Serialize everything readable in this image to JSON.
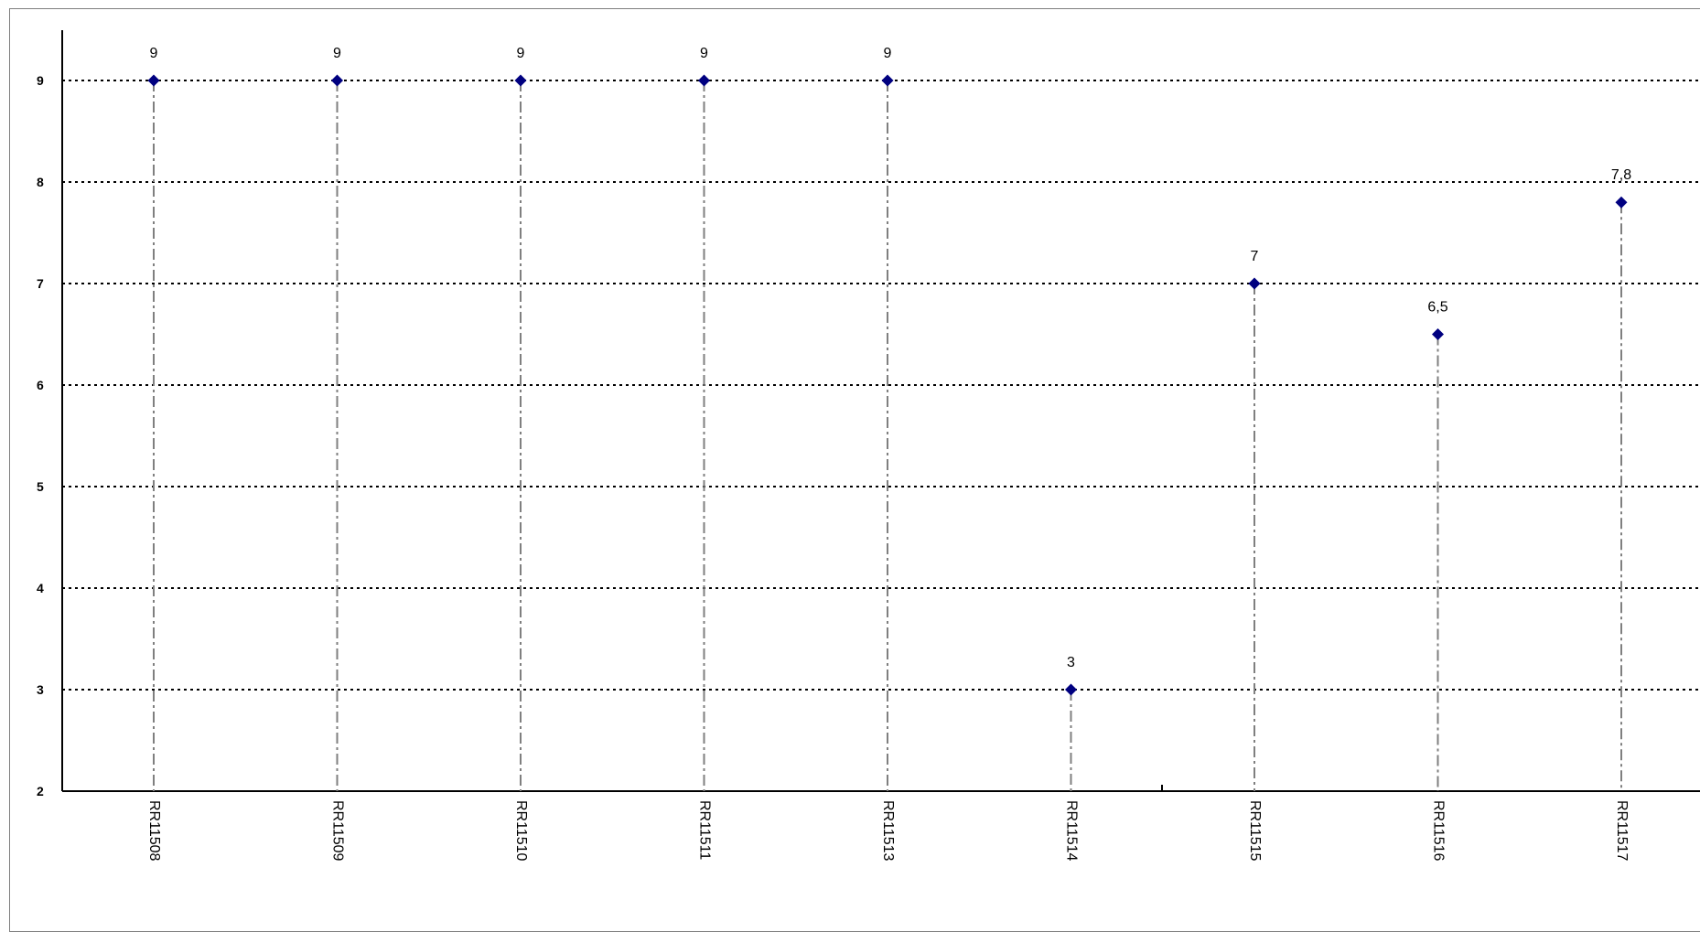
{
  "chart_data": {
    "type": "scatter",
    "categories": [
      "RR11508",
      "RR11509",
      "RR11510",
      "RR11511",
      "RR11513",
      "RR11514",
      "RR11515",
      "RR11516",
      "RR11517"
    ],
    "values": [
      9,
      9,
      9,
      9,
      9,
      3,
      7,
      6.5,
      7.8
    ],
    "data_labels": [
      "9",
      "9",
      "9",
      "9",
      "9",
      "3",
      "7",
      "6,5",
      "7,8"
    ],
    "y_ticks": [
      "2",
      "3",
      "4",
      "5",
      "6",
      "7",
      "8",
      "9"
    ],
    "ylim": [
      2,
      9.5
    ],
    "grid": true,
    "marker": "diamond",
    "marker_color": "#000080",
    "drop_lines": true,
    "title": "",
    "xlabel": "",
    "ylabel": ""
  }
}
